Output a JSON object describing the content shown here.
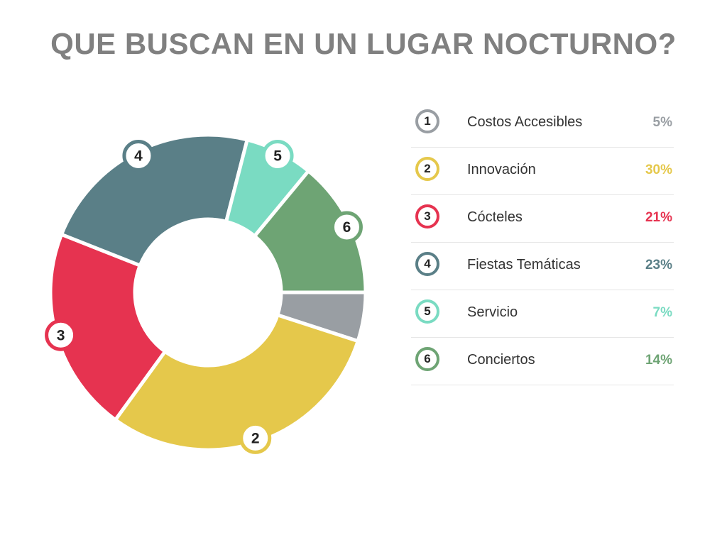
{
  "title": "QUE BUSCAN EN UN LUGAR NOCTURNO?",
  "chart_data": {
    "type": "pie",
    "style": "donut",
    "categories": [
      "Costos Accesibles",
      "Innovación",
      "Cócteles",
      "Fiestas Temáticas",
      "Servicio",
      "Conciertos"
    ],
    "values": [
      5,
      30,
      21,
      23,
      7,
      14
    ],
    "value_labels": [
      "5%",
      "30%",
      "21%",
      "23%",
      "7%",
      "14%"
    ],
    "numbers": [
      "1",
      "2",
      "3",
      "4",
      "5",
      "6"
    ],
    "colors": [
      "#999ea3",
      "#e5c84b",
      "#e63350",
      "#5a7f87",
      "#7adbc2",
      "#6ea474"
    ],
    "legend_placement": "right"
  }
}
